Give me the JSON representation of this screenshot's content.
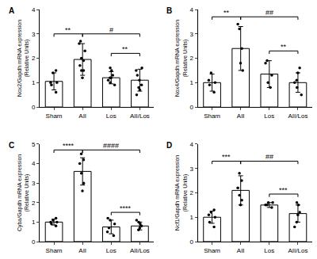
{
  "chart_data": [
    {
      "type": "bar",
      "title": "A",
      "categories": [
        "Sham",
        "AII",
        "Los",
        "AII/Los"
      ],
      "values": [
        1.05,
        1.95,
        1.2,
        1.1
      ],
      "errors": [
        0.35,
        0.65,
        0.25,
        0.45
      ],
      "points": [
        [
          0.6,
          0.9,
          1.0,
          1.4,
          1.5,
          1.0
        ],
        [
          1.2,
          1.5,
          1.7,
          1.9,
          2.0,
          2.3,
          2.6,
          2.7,
          1.5
        ],
        [
          0.9,
          1.0,
          1.1,
          1.2,
          1.3,
          1.5,
          1.6,
          1.2
        ],
        [
          0.5,
          0.7,
          0.9,
          1.1,
          1.3,
          1.5,
          1.6,
          0.8
        ]
      ],
      "color": "#ffffff",
      "y_label": [
        "Nox2/Gapdh mRNA expression",
        "(Relative Units)"
      ],
      "ylim": [
        0,
        4
      ],
      "yticks": [
        0,
        1,
        2,
        3,
        4
      ],
      "comparisons": [
        {
          "from": "Sham",
          "to": "AII",
          "label": "**",
          "y": 3.0
        },
        {
          "from": "AII",
          "to": "AII/Los",
          "label": "#",
          "y": 3.0
        },
        {
          "from": "Los",
          "to": "AII/Los",
          "label": "**",
          "y": 2.2
        }
      ]
    },
    {
      "type": "bar",
      "title": "B",
      "categories": [
        "Sham",
        "AII",
        "Los",
        "AII/Los"
      ],
      "values": [
        1.0,
        2.4,
        1.35,
        1.0
      ],
      "errors": [
        0.35,
        0.9,
        0.55,
        0.4
      ],
      "points": [
        [
          0.6,
          0.9,
          1.0,
          1.1,
          1.4
        ],
        [
          1.5,
          1.8,
          2.4,
          3.2,
          3.4
        ],
        [
          0.8,
          1.0,
          1.3,
          1.8,
          1.9
        ],
        [
          0.5,
          0.8,
          1.0,
          1.1,
          1.4,
          1.6
        ]
      ],
      "color": "#ffffff",
      "y_label": [
        "Nox4/Gapdh mRNA expression",
        "(Relative Units)"
      ],
      "ylim": [
        0,
        4
      ],
      "yticks": [
        0,
        1,
        2,
        3,
        4
      ],
      "comparisons": [
        {
          "from": "Sham",
          "to": "AII",
          "label": "**",
          "y": 3.7
        },
        {
          "from": "AII",
          "to": "AII/Los",
          "label": "##",
          "y": 3.7
        },
        {
          "from": "Los",
          "to": "AII/Los",
          "label": "**",
          "y": 2.3
        }
      ]
    },
    {
      "type": "bar",
      "title": "C",
      "categories": [
        "Sham",
        "AII",
        "Los",
        "AII/Los"
      ],
      "values": [
        1.0,
        3.6,
        0.75,
        0.8
      ],
      "errors": [
        0.15,
        0.7,
        0.35,
        0.2
      ],
      "points": [
        [
          0.8,
          0.9,
          1.0,
          1.1,
          1.2,
          1.0
        ],
        [
          2.6,
          3.0,
          3.5,
          4.0,
          4.2,
          4.5
        ],
        [
          0.3,
          0.5,
          0.7,
          0.9,
          1.1,
          1.2
        ],
        [
          0.6,
          0.7,
          0.8,
          0.9,
          1.0,
          1.1
        ]
      ],
      "color": "#ffffff",
      "y_label": [
        "Cyba/Gapdh mRNA expression",
        "(Relative Units)"
      ],
      "ylim": [
        0,
        5
      ],
      "yticks": [
        0,
        1,
        2,
        3,
        4,
        5
      ],
      "comparisons": [
        {
          "from": "Sham",
          "to": "AII",
          "label": "****",
          "y": 4.7
        },
        {
          "from": "AII",
          "to": "AII/Los",
          "label": "####",
          "y": 4.7
        },
        {
          "from": "Los",
          "to": "AII/Los",
          "label": "****",
          "y": 1.5
        }
      ]
    },
    {
      "type": "bar",
      "title": "D",
      "categories": [
        "Sham",
        "AII",
        "Los",
        "AII/Los"
      ],
      "values": [
        1.0,
        2.1,
        1.5,
        1.15
      ],
      "errors": [
        0.25,
        0.6,
        0.1,
        0.35
      ],
      "points": [
        [
          0.6,
          0.8,
          1.0,
          1.1,
          1.2,
          1.3
        ],
        [
          1.5,
          1.7,
          1.9,
          2.2,
          2.8,
          2.5
        ],
        [
          1.4,
          1.5,
          1.5,
          1.6,
          1.6
        ],
        [
          0.6,
          0.8,
          1.1,
          1.2,
          1.5,
          1.6
        ]
      ],
      "color": "#ffffff",
      "y_label": [
        "Ncf1/Gapdh mRNA expression",
        "(Relative Units)"
      ],
      "ylim": [
        0,
        4
      ],
      "yticks": [
        0,
        1,
        2,
        3,
        4
      ],
      "comparisons": [
        {
          "from": "Sham",
          "to": "AII",
          "label": "***",
          "y": 3.3
        },
        {
          "from": "AII",
          "to": "AII/Los",
          "label": "##",
          "y": 3.3
        },
        {
          "from": "Los",
          "to": "AII/Los",
          "label": "***",
          "y": 1.95
        }
      ]
    }
  ]
}
